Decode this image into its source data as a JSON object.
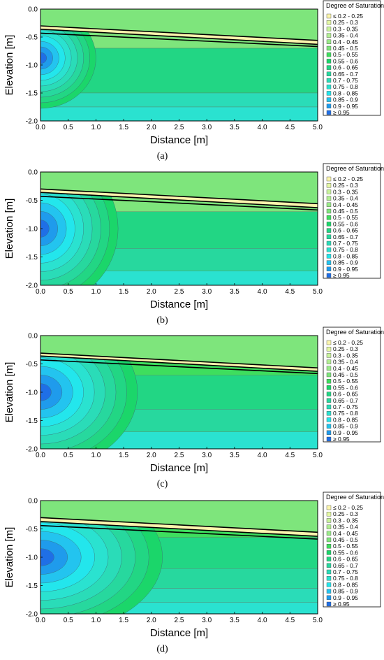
{
  "colorscale": {
    "title": "Degree of Saturation",
    "labels": [
      "≤ 0.2 - 0.25",
      "0.25 - 0.3",
      "0.3 - 0.35",
      "0.35 - 0.4",
      "0.4 - 0.45",
      "0.45 - 0.5",
      "0.5 - 0.55",
      "0.55 - 0.6",
      "0.6 - 0.65",
      "0.65 - 0.7",
      "0.7 - 0.75",
      "0.75 - 0.8",
      "0.8 - 0.85",
      "0.85 - 0.9",
      "0.9 - 0.95",
      "≥ 0.95"
    ],
    "colors": [
      "#fbf5ad",
      "#e3f7a4",
      "#c8f39b",
      "#b2ef93",
      "#9aeb89",
      "#7ee57c",
      "#3ede5e",
      "#1bd66a",
      "#22d684",
      "#27d89e",
      "#2adcb8",
      "#2ae2d0",
      "#23e6ec",
      "#23c4ef",
      "#1f9bec",
      "#1f6fe6"
    ]
  },
  "chart_data": [
    {
      "type": "heatmap",
      "panel_label": "(a)",
      "xlabel": "Distance [m]",
      "ylabel": "Elevation [m]",
      "xlim": [
        0,
        5
      ],
      "ylim": [
        -2,
        0
      ],
      "xticks": [
        "0.0",
        "0.5",
        "1.0",
        "1.5",
        "2.0",
        "2.5",
        "3.0",
        "3.5",
        "4.0",
        "4.5",
        "5.0"
      ],
      "yticks": [
        "0.0",
        "-0.5",
        "-1.0",
        "-1.5",
        "-2.0"
      ],
      "layer_boundaries": [
        {
          "x": [
            0,
            5
          ],
          "y": [
            -0.3,
            -0.56
          ]
        },
        {
          "x": [
            0,
            5
          ],
          "y": [
            -0.36,
            -0.63
          ]
        },
        {
          "x": [
            0,
            5
          ],
          "y": [
            -0.43,
            -0.67
          ]
        }
      ],
      "contour_levels": [
        0.55,
        0.6,
        0.65,
        0.7,
        0.75,
        0.8,
        0.85,
        0.9,
        0.95
      ],
      "wet_zone": {
        "x": [
          0,
          1.0
        ],
        "y": [
          -1.4,
          -0.35
        ],
        "peak": 0.97
      },
      "background_saturation": [
        {
          "y_from": 0.0,
          "value": 0.5
        },
        {
          "y_from": -0.7,
          "value": 0.62
        },
        {
          "y_from": -1.5,
          "value": 0.72
        },
        {
          "y_from": -1.75,
          "value": 0.78
        }
      ]
    },
    {
      "type": "heatmap",
      "panel_label": "(b)",
      "xlabel": "Distance [m]",
      "ylabel": "Elevation [m]",
      "xlim": [
        0,
        5
      ],
      "ylim": [
        -2,
        0
      ],
      "xticks": [
        "0.0",
        "0.5",
        "1.0",
        "1.5",
        "2.0",
        "2.5",
        "3.0",
        "3.5",
        "4.0",
        "4.5",
        "5.0"
      ],
      "yticks": [
        "0.0",
        "-0.5",
        "-1.0",
        "-1.5",
        "-2.0"
      ],
      "layer_boundaries": [
        {
          "x": [
            0,
            5
          ],
          "y": [
            -0.3,
            -0.56
          ]
        },
        {
          "x": [
            0,
            5
          ],
          "y": [
            -0.36,
            -0.63
          ]
        },
        {
          "x": [
            0,
            5
          ],
          "y": [
            -0.43,
            -0.67
          ]
        }
      ],
      "contour_levels": [
        0.55,
        0.6,
        0.65,
        0.7,
        0.75,
        0.8,
        0.85,
        0.9,
        0.95
      ],
      "wet_zone": {
        "x": [
          0,
          1.4
        ],
        "y": [
          -2.0,
          0.0
        ],
        "peak": 0.97
      },
      "background_saturation": [
        {
          "y_from": 0.0,
          "value": 0.5
        },
        {
          "y_from": -0.7,
          "value": 0.62
        },
        {
          "y_from": -1.35,
          "value": 0.7
        },
        {
          "y_from": -1.75,
          "value": 0.78
        }
      ]
    },
    {
      "type": "heatmap",
      "panel_label": "(c)",
      "xlabel": "Distance [m]",
      "ylabel": "Elevation [m]",
      "xlim": [
        0,
        5
      ],
      "ylim": [
        -2,
        0
      ],
      "xticks": [
        "0.0",
        "0.5",
        "1.0",
        "1.5",
        "2.0",
        "2.5",
        "3.0",
        "3.5",
        "4.0",
        "4.5",
        "5.0"
      ],
      "yticks": [
        "0.0",
        "-0.5",
        "-1.0",
        "-1.5",
        "-2.0"
      ],
      "layer_boundaries": [
        {
          "x": [
            0,
            5
          ],
          "y": [
            -0.31,
            -0.57
          ]
        },
        {
          "x": [
            0,
            5
          ],
          "y": [
            -0.36,
            -0.63
          ]
        },
        {
          "x": [
            0,
            5
          ],
          "y": [
            -0.43,
            -0.67
          ]
        }
      ],
      "contour_levels": [
        0.55,
        0.6,
        0.65,
        0.7,
        0.75,
        0.8,
        0.85,
        0.9,
        0.95
      ],
      "wet_zone": {
        "x": [
          0,
          1.75
        ],
        "y": [
          -2.0,
          0.0
        ],
        "peak": 0.95
      },
      "background_saturation": [
        {
          "y_from": 0.0,
          "value": 0.52
        },
        {
          "y_from": -0.7,
          "value": 0.63
        },
        {
          "y_from": -1.3,
          "value": 0.7
        },
        {
          "y_from": -1.7,
          "value": 0.76
        }
      ]
    },
    {
      "type": "heatmap",
      "panel_label": "(d)",
      "xlabel": "Distance [m]",
      "ylabel": "Elevation [m]",
      "xlim": [
        0,
        5
      ],
      "ylim": [
        -2,
        0
      ],
      "xticks": [
        "0.0",
        "0.5",
        "1.0",
        "1.5",
        "2.0",
        "2.5",
        "3.0",
        "3.5",
        "4.0",
        "4.5",
        "5.0"
      ],
      "yticks": [
        "0.0",
        "-0.5",
        "-1.0",
        "-1.5",
        "-2.0"
      ],
      "layer_boundaries": [
        {
          "x": [
            0,
            5
          ],
          "y": [
            -0.3,
            -0.56
          ]
        },
        {
          "x": [
            0,
            5
          ],
          "y": [
            -0.37,
            -0.63
          ]
        },
        {
          "x": [
            0,
            5
          ],
          "y": [
            -0.44,
            -0.68
          ]
        }
      ],
      "contour_levels": [
        0.55,
        0.6,
        0.65,
        0.7,
        0.75,
        0.8,
        0.85,
        0.9,
        0.95
      ],
      "wet_zone": {
        "x": [
          0,
          2.2
        ],
        "y": [
          -2.0,
          0.0
        ],
        "peak": 0.95
      },
      "background_saturation": [
        {
          "y_from": 0.0,
          "value": 0.52
        },
        {
          "y_from": -0.65,
          "value": 0.62
        },
        {
          "y_from": -1.2,
          "value": 0.68
        },
        {
          "y_from": -1.55,
          "value": 0.73
        },
        {
          "y_from": -1.8,
          "value": 0.78
        }
      ]
    }
  ]
}
